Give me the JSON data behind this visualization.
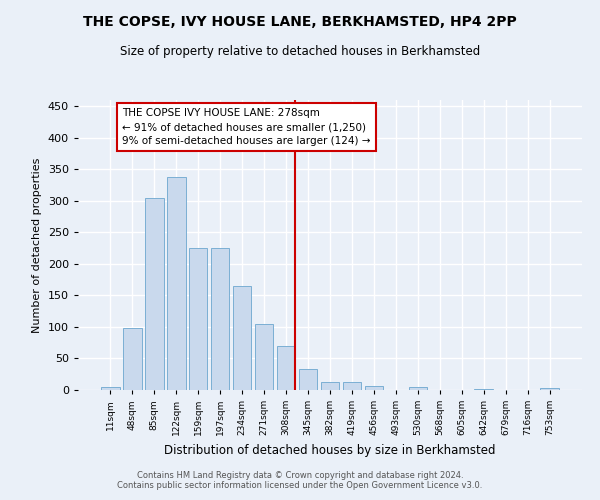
{
  "title": "THE COPSE, IVY HOUSE LANE, BERKHAMSTED, HP4 2PP",
  "subtitle": "Size of property relative to detached houses in Berkhamsted",
  "xlabel": "Distribution of detached houses by size in Berkhamsted",
  "ylabel": "Number of detached properties",
  "bar_labels": [
    "11sqm",
    "48sqm",
    "85sqm",
    "122sqm",
    "159sqm",
    "197sqm",
    "234sqm",
    "271sqm",
    "308sqm",
    "345sqm",
    "382sqm",
    "419sqm",
    "456sqm",
    "493sqm",
    "530sqm",
    "568sqm",
    "605sqm",
    "642sqm",
    "679sqm",
    "716sqm",
    "753sqm"
  ],
  "bar_values": [
    5,
    99,
    305,
    338,
    226,
    226,
    165,
    105,
    70,
    34,
    13,
    13,
    7,
    0,
    5,
    0,
    0,
    2,
    0,
    0,
    3
  ],
  "bar_color": "#c9d9ed",
  "bar_edge_color": "#7bafd4",
  "vline_x": 8.42,
  "vline_color": "#cc0000",
  "annotation_text": "THE COPSE IVY HOUSE LANE: 278sqm\n← 91% of detached houses are smaller (1,250)\n9% of semi-detached houses are larger (124) →",
  "annotation_box_color": "#ffffff",
  "annotation_box_edge": "#cc0000",
  "ylim": [
    0,
    460
  ],
  "yticks": [
    0,
    50,
    100,
    150,
    200,
    250,
    300,
    350,
    400,
    450
  ],
  "background_color": "#eaf0f8",
  "grid_color": "#ffffff",
  "footer": "Contains HM Land Registry data © Crown copyright and database right 2024.\nContains public sector information licensed under the Open Government Licence v3.0."
}
